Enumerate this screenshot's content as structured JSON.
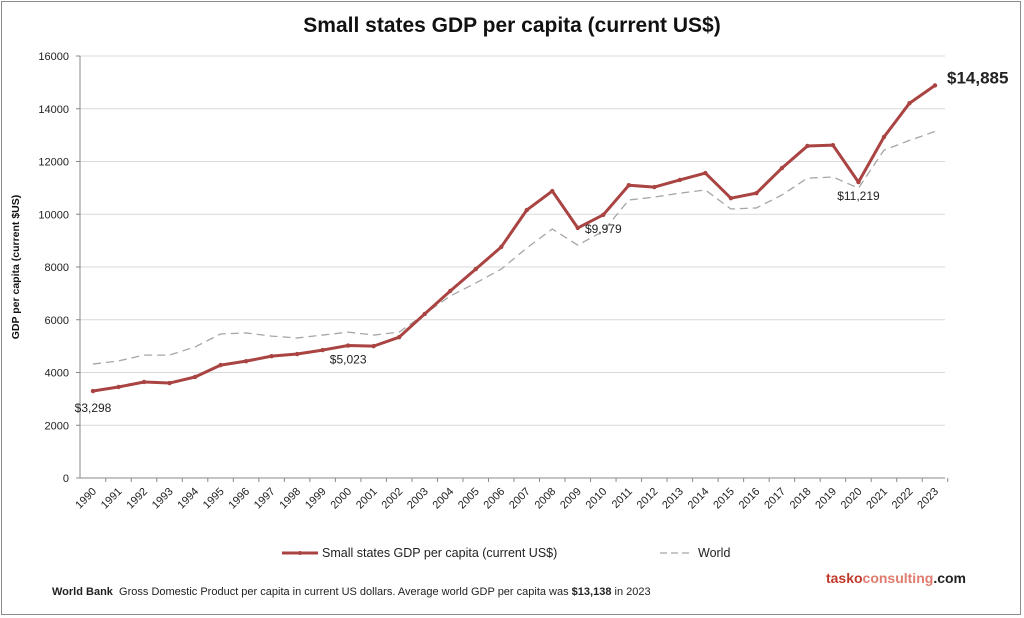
{
  "chart_data": {
    "type": "line",
    "title": "Small states GDP per capita (current US$)",
    "ylabel": "GDP per capita  (current $US)",
    "xlabel": "",
    "ylim": [
      0,
      16000
    ],
    "yticks": [
      "0",
      "2000",
      "4000",
      "6000",
      "8000",
      "10000",
      "12000",
      "14000",
      "16000"
    ],
    "grid": true,
    "legend": "bottom",
    "x": [
      "1990",
      "1991",
      "1992",
      "1993",
      "1994",
      "1995",
      "1996",
      "1997",
      "1998",
      "1999",
      "2000",
      "2001",
      "2002",
      "2003",
      "2004",
      "2005",
      "2006",
      "2007",
      "2008",
      "2009",
      "2010",
      "2011",
      "2012",
      "2013",
      "2014",
      "2015",
      "2016",
      "2017",
      "2018",
      "2019",
      "2020",
      "2021",
      "2022",
      "2023"
    ],
    "series": [
      {
        "name": "Small states GDP per capita (current US$)",
        "color": "#a94442",
        "values": [
          3298,
          3450,
          3640,
          3600,
          3830,
          4280,
          4430,
          4620,
          4700,
          4850,
          5023,
          5000,
          5340,
          6220,
          7090,
          7920,
          8760,
          10160,
          10880,
          9480,
          9979,
          11100,
          11030,
          11300,
          11560,
          10610,
          10800,
          11750,
          12590,
          12620,
          11219,
          12930,
          14210,
          14885
        ]
      },
      {
        "name": "World",
        "color": "#a6a6a6",
        "dashed": true,
        "values": [
          4320,
          4440,
          4660,
          4660,
          4970,
          5460,
          5500,
          5380,
          5310,
          5420,
          5530,
          5420,
          5530,
          6220,
          6900,
          7390,
          7920,
          8720,
          9440,
          8830,
          9360,
          10540,
          10650,
          10800,
          10920,
          10200,
          10240,
          10730,
          11370,
          11410,
          10990,
          12430,
          12800,
          13138
        ]
      }
    ],
    "annotations": [
      {
        "x": "1990",
        "label": "$3,298"
      },
      {
        "x": "2000",
        "label": "$5,023"
      },
      {
        "x": "2010",
        "label": "$9,979"
      },
      {
        "x": "2020",
        "label": "$11,219"
      },
      {
        "x": "2023",
        "label": "$14,885"
      }
    ]
  },
  "footer": {
    "source": "World Bank",
    "text": "Gross Domestic Product per capita in current US dollars.  Average world GDP per capita was ",
    "highlight": "$13,138",
    "tail": " in 2023"
  },
  "brand": {
    "part1": "tasko",
    "part2": "consulting",
    "part3": ".com",
    "color1": "#c0392b",
    "color2": "#e07b6f"
  }
}
